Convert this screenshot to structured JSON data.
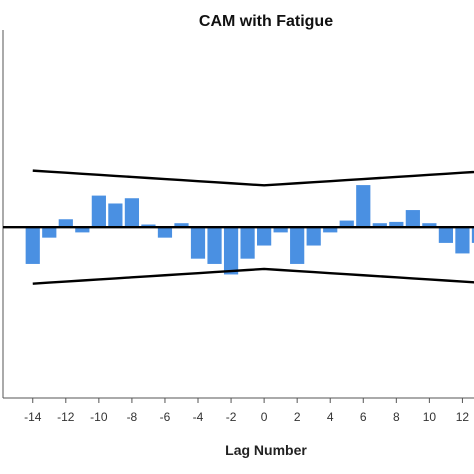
{
  "chart_data": {
    "type": "bar",
    "title": "CAM with Fatigue",
    "xlabel": "Lag Number",
    "ylabel": "",
    "x": [
      -14,
      -13,
      -12,
      -11,
      -10,
      -9,
      -8,
      -7,
      -6,
      -5,
      -4,
      -3,
      -2,
      -1,
      0,
      1,
      2,
      3,
      4,
      5,
      6,
      7,
      8,
      9,
      10,
      11,
      12,
      13
    ],
    "values": [
      -0.14,
      -0.04,
      0.03,
      -0.02,
      0.12,
      0.09,
      0.11,
      0.01,
      -0.04,
      0.015,
      -0.12,
      -0.14,
      -0.18,
      -0.12,
      -0.07,
      -0.02,
      -0.14,
      -0.07,
      -0.02,
      0.025,
      0.16,
      0.015,
      0.02,
      0.065,
      0.015,
      -0.06,
      -0.1,
      -0.06
    ],
    "confidence_upper": [
      0.215,
      0.211,
      0.207,
      0.203,
      0.199,
      0.195,
      0.191,
      0.187,
      0.183,
      0.179,
      0.175,
      0.171,
      0.167,
      0.163,
      0.159,
      0.163,
      0.167,
      0.171,
      0.175,
      0.179,
      0.183,
      0.187,
      0.191,
      0.195,
      0.199,
      0.203,
      0.207,
      0.211
    ],
    "confidence_lower": [
      -0.215,
      -0.211,
      -0.207,
      -0.203,
      -0.199,
      -0.195,
      -0.191,
      -0.187,
      -0.183,
      -0.179,
      -0.175,
      -0.171,
      -0.167,
      -0.163,
      -0.159,
      -0.163,
      -0.167,
      -0.171,
      -0.175,
      -0.179,
      -0.183,
      -0.187,
      -0.191,
      -0.195,
      -0.199,
      -0.203,
      -0.207,
      -0.211
    ],
    "xticks": [
      -14,
      -12,
      -10,
      -8,
      -6,
      -4,
      -2,
      0,
      2,
      4,
      6,
      8,
      10,
      12
    ],
    "xlim": [
      -15.8,
      12.7
    ],
    "ylim": [
      -0.65,
      0.75
    ],
    "bar_color": "#4a90e2",
    "line_color": "#000000",
    "grid": false
  }
}
